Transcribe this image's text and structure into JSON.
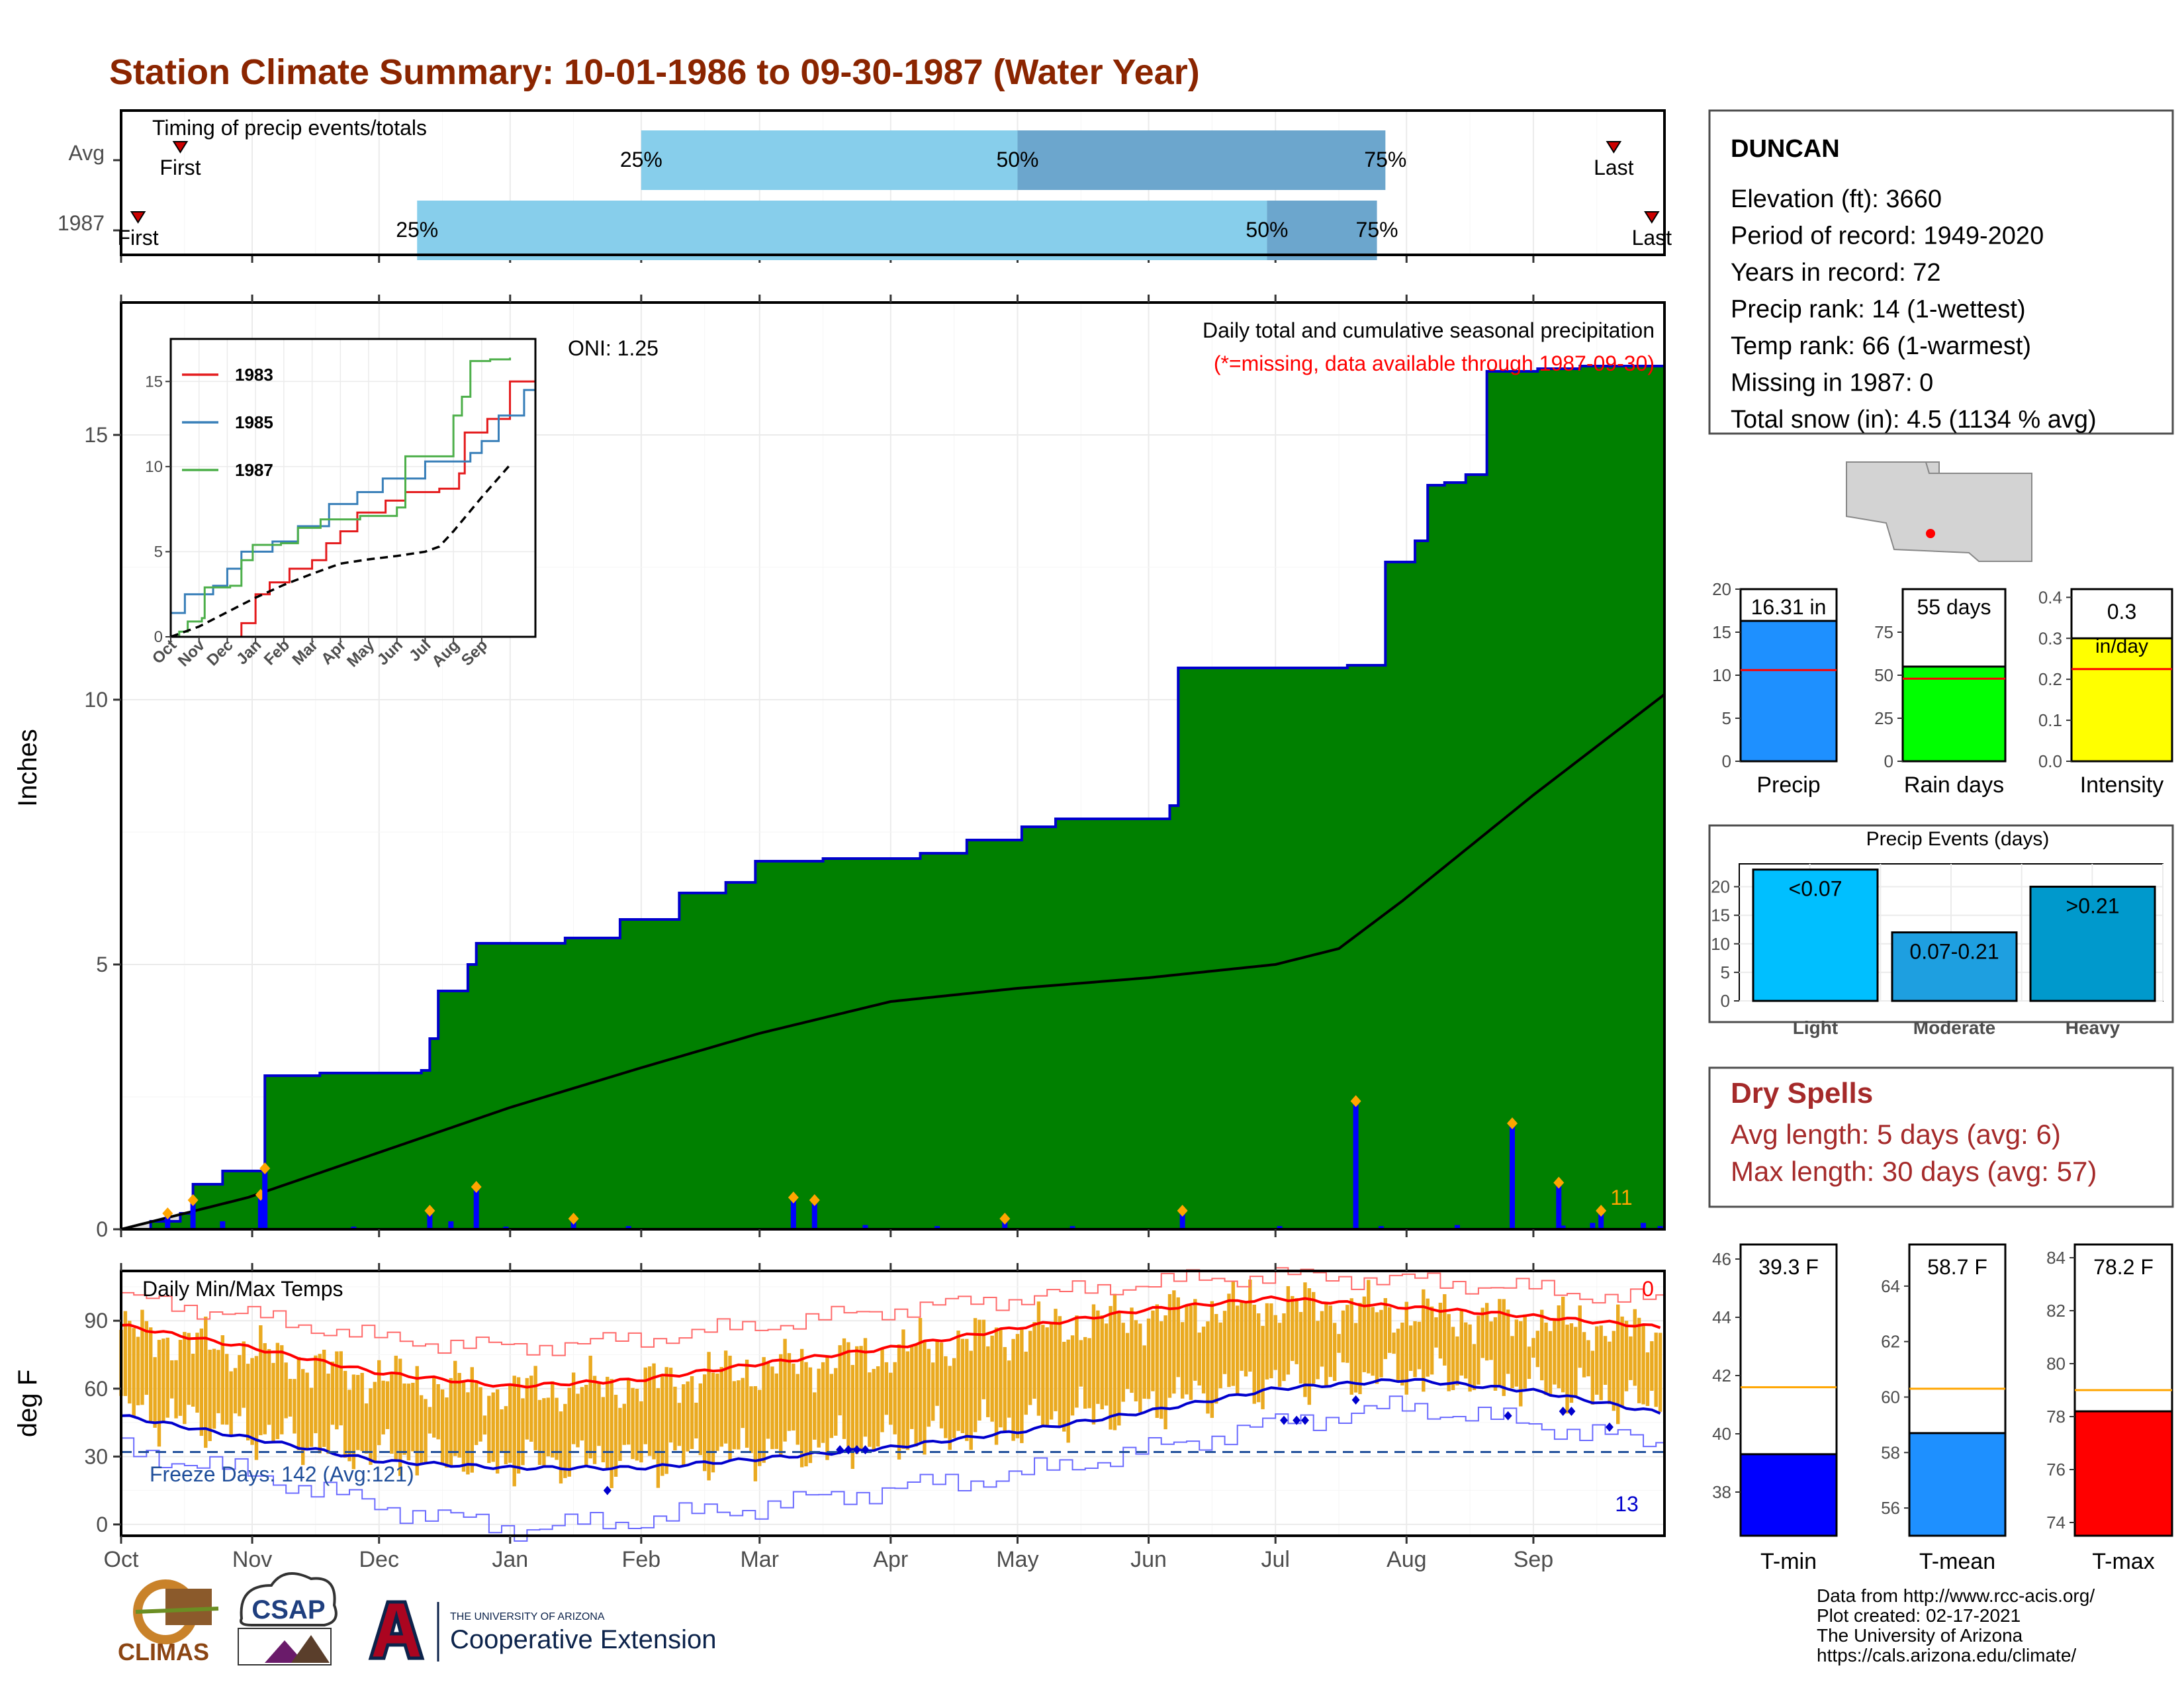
{
  "header": {
    "title": "Station Climate Summary: 10-01-1986 to 09-30-1987 (Water Year)"
  },
  "colors": {
    "title": "#8B2500",
    "cum_fill": "#008000",
    "cum_line": "#0000CD",
    "avg_fill": "#E0E0E0",
    "timing_light": "#87CEEB",
    "timing_dark": "#6CA6CD",
    "temp_bar": "#EAAA20",
    "avg_max": "#FF0000",
    "avg_min": "#0000FF",
    "tmin": "#0000FF",
    "tmean": "#1E90FF",
    "tmax": "#FF0000"
  },
  "timing": {
    "title": "Timing of precip events/totals",
    "rows": [
      {
        "label": "Avg",
        "first": "Oct 15",
        "q25": "Feb 1",
        "q50": "May 1",
        "q75": "Jul 27",
        "last": "Sep 20",
        "first_label": "First",
        "last_label": "Last"
      },
      {
        "label": "1987",
        "first": "Oct 5",
        "q25": "Dec 10",
        "q50": "Jun 29",
        "q75": "Jul 25",
        "last": "Sep 29",
        "first_label": "First",
        "last_label": "Last"
      }
    ],
    "pct_labels": [
      "25%",
      "50%",
      "75%"
    ]
  },
  "precip": {
    "ylabel": "Inches",
    "yticks": [
      "0",
      "5",
      "10",
      "15"
    ],
    "caption": "Daily total and cumulative seasonal precipitation",
    "missing_note": "(*=missing, data available through 1987-09-30)",
    "oni": "ONI: 1.25",
    "count": "11"
  },
  "inset": {
    "xlabels": [
      "Oct",
      "Nov",
      "Dec",
      "Jan",
      "Feb",
      "Mar",
      "Apr",
      "May",
      "Jun",
      "Jul",
      "Aug",
      "Sep"
    ],
    "yticks": [
      "0",
      "5",
      "10",
      "15"
    ],
    "legend": [
      {
        "name": "1983",
        "color": "#E41A1C"
      },
      {
        "name": "1985",
        "color": "#377EB8"
      },
      {
        "name": "1987",
        "color": "#4DAF4A"
      }
    ]
  },
  "temps": {
    "title": "Daily Min/Max Temps",
    "ylabel": "deg F",
    "yticks": [
      "0",
      "30",
      "60",
      "90"
    ],
    "freeze_label": "Freeze Days: 142 (Avg:121)",
    "hot_count": "0",
    "cold_count": "13"
  },
  "xaxis": {
    "months": [
      "Oct",
      "Nov",
      "Dec",
      "Jan",
      "Feb",
      "Mar",
      "Apr",
      "May",
      "Jun",
      "Jul",
      "Aug",
      "Sep"
    ]
  },
  "station": {
    "name": "DUNCAN",
    "lines": [
      "Elevation (ft): 3660",
      "Period of record: 1949-2020",
      "Years in record: 72",
      "Precip rank: 14 (1-wettest)",
      "Temp rank: 66 (1-warmest)",
      "Missing in 1987: 0",
      "Total snow (in): 4.5 (1134 % avg)"
    ]
  },
  "minicharts": [
    {
      "key": "precip",
      "value": 16.31,
      "avg": 10.6,
      "label": "16.31 in",
      "xlabel": "Precip",
      "ymax": 20,
      "yticks": [
        "0",
        "5",
        "10",
        "15",
        "20"
      ],
      "color": "#1E90FF"
    },
    {
      "key": "raindays",
      "value": 55,
      "avg": 48,
      "label": "55 days",
      "xlabel": "Rain days",
      "ymax": 100,
      "yticks": [
        "0",
        "25",
        "50",
        "75"
      ],
      "color": "#00FF00"
    },
    {
      "key": "intensity",
      "value": 0.3,
      "avg": 0.225,
      "label": "0.3\nin/day",
      "label_top": "0.3",
      "label_bottom": "in/day",
      "xlabel": "Intensity",
      "ymax": 0.42,
      "yticks": [
        "0.0",
        "0.1",
        "0.2",
        "0.3",
        "0.4"
      ],
      "color": "#FFFF00"
    }
  ],
  "events": {
    "title": "Precip Events (days)",
    "categories": [
      "Light",
      "Moderate",
      "Heavy"
    ],
    "labels": [
      "<0.07",
      "0.07-0.21",
      ">0.21"
    ],
    "values": [
      23,
      12,
      20
    ],
    "yticks": [
      "0",
      "5",
      "10",
      "15",
      "20"
    ],
    "colors": [
      "#00BFFF",
      "#1E9FE0",
      "#0099CC"
    ]
  },
  "dry_spells": {
    "title": "Dry Spells",
    "avg_line": "Avg length: 5 days (avg: 6)",
    "max_line": "Max length: 30 days (avg: 57)"
  },
  "temp_bars": [
    {
      "key": "tmin",
      "label": "39.3 F",
      "value": 39.3,
      "avg": 41.6,
      "xlabel": "T-min",
      "ymin": 36.5,
      "ymax": 46.5,
      "yticks": [
        "38",
        "40",
        "42",
        "44",
        "46"
      ],
      "color": "#0000FF"
    },
    {
      "key": "tmean",
      "label": "58.7 F",
      "value": 58.7,
      "avg": 60.3,
      "xlabel": "T-mean",
      "ymin": 55,
      "ymax": 65.5,
      "yticks": [
        "56",
        "58",
        "60",
        "62",
        "64"
      ],
      "color": "#1E90FF"
    },
    {
      "key": "tmax",
      "label": "78.2 F",
      "value": 78.2,
      "avg": 79.0,
      "xlabel": "T-max",
      "ymin": 73.5,
      "ymax": 84.5,
      "yticks": [
        "74",
        "76",
        "78",
        "80",
        "82",
        "84"
      ],
      "color": "#FF0000"
    }
  ],
  "footer": {
    "lines": [
      "Data from http://www.rcc-acis.org/",
      "Plot created: 02-17-2021",
      "The University of Arizona",
      "https://cals.arizona.edu/climate/"
    ],
    "climas": "CLIMAS",
    "csap": "CSAP",
    "ua_small": "THE UNIVERSITY OF ARIZONA",
    "ua_big": "Cooperative Extension"
  },
  "chart_data": [
    {
      "type": "area",
      "title": "Daily total and cumulative seasonal precipitation",
      "ylabel": "Inches",
      "x_unit": "day of water year (0 = Oct 1)",
      "ylim": [
        0,
        17.5
      ],
      "cumulative_1987": [
        [
          0,
          0
        ],
        [
          7,
          0.15
        ],
        [
          14,
          0.3
        ],
        [
          17,
          0.85
        ],
        [
          24,
          1.1
        ],
        [
          31,
          1.1
        ],
        [
          34,
          2.9
        ],
        [
          47,
          2.95
        ],
        [
          62,
          2.95
        ],
        [
          71,
          3.0
        ],
        [
          73,
          3.6
        ],
        [
          75,
          4.5
        ],
        [
          82,
          5.0
        ],
        [
          84,
          5.4
        ],
        [
          95,
          5.4
        ],
        [
          105,
          5.5
        ],
        [
          118,
          5.85
        ],
        [
          132,
          6.35
        ],
        [
          143,
          6.55
        ],
        [
          150,
          6.95
        ],
        [
          166,
          7.0
        ],
        [
          189,
          7.1
        ],
        [
          200,
          7.35
        ],
        [
          213,
          7.6
        ],
        [
          221,
          7.75
        ],
        [
          240,
          7.75
        ],
        [
          248,
          8.0
        ],
        [
          250,
          10.6
        ],
        [
          270,
          10.6
        ],
        [
          290,
          10.65
        ],
        [
          299,
          12.6
        ],
        [
          306,
          13.0
        ],
        [
          309,
          14.05
        ],
        [
          313,
          14.1
        ],
        [
          318,
          14.25
        ],
        [
          323,
          16.2
        ],
        [
          335,
          16.25
        ],
        [
          345,
          16.3
        ],
        [
          365,
          16.4
        ]
      ],
      "average_cumulative": [
        [
          0,
          0
        ],
        [
          30,
          0.6
        ],
        [
          61,
          1.45
        ],
        [
          92,
          2.3
        ],
        [
          123,
          3.05
        ],
        [
          151,
          3.7
        ],
        [
          182,
          4.3
        ],
        [
          212,
          4.55
        ],
        [
          243,
          4.75
        ],
        [
          273,
          5.0
        ],
        [
          288,
          5.3
        ],
        [
          303,
          6.2
        ],
        [
          334,
          8.2
        ],
        [
          365,
          10.1
        ]
      ],
      "daily_events": [
        [
          11,
          0.3
        ],
        [
          17,
          0.55
        ],
        [
          24,
          0.15
        ],
        [
          33,
          0.65
        ],
        [
          34,
          1.15
        ],
        [
          55,
          0.05
        ],
        [
          73,
          0.35
        ],
        [
          78,
          0.15
        ],
        [
          84,
          0.8
        ],
        [
          91,
          0.05
        ],
        [
          107,
          0.2
        ],
        [
          120,
          0.06
        ],
        [
          159,
          0.6
        ],
        [
          164,
          0.55
        ],
        [
          176,
          0.08
        ],
        [
          193,
          0.06
        ],
        [
          209,
          0.2
        ],
        [
          225,
          0.06
        ],
        [
          251,
          0.35
        ],
        [
          274,
          0.06
        ],
        [
          292,
          2.42
        ],
        [
          298,
          0.06
        ],
        [
          316,
          0.08
        ],
        [
          329,
          2.0
        ],
        [
          340,
          0.88
        ],
        [
          341,
          0.07
        ],
        [
          348,
          0.12
        ],
        [
          350,
          0.35
        ],
        [
          360,
          0.12
        ],
        [
          364,
          0.06
        ]
      ],
      "oni": 1.25
    },
    {
      "type": "line",
      "title": "",
      "x_categories": [
        "Oct",
        "Nov",
        "Dec",
        "Jan",
        "Feb",
        "Mar",
        "Apr",
        "May",
        "Jun",
        "Jul",
        "Aug",
        "Sep"
      ],
      "ylim": [
        0,
        17.5
      ],
      "series": [
        {
          "name": "1983",
          "points": [
            [
              0,
              0
            ],
            [
              2.5,
              0.8
            ],
            [
              3.0,
              2.5
            ],
            [
              3.5,
              3.2
            ],
            [
              4.2,
              4.0
            ],
            [
              5.0,
              4.5
            ],
            [
              5.5,
              5.5
            ],
            [
              6.0,
              6.2
            ],
            [
              6.6,
              7.3
            ],
            [
              7.6,
              8.0
            ],
            [
              8.3,
              8.5
            ],
            [
              9.5,
              8.7
            ],
            [
              10.2,
              9.6
            ],
            [
              10.4,
              12.0
            ],
            [
              11.2,
              12.8
            ],
            [
              12.0,
              15.0
            ],
            [
              12.9,
              16.3
            ]
          ]
        },
        {
          "name": "1985",
          "points": [
            [
              0,
              1.4
            ],
            [
              0.5,
              2.5
            ],
            [
              1.5,
              3.0
            ],
            [
              2.0,
              4.0
            ],
            [
              2.5,
              5.0
            ],
            [
              3.6,
              5.6
            ],
            [
              4.5,
              6.5
            ],
            [
              5.6,
              7.8
            ],
            [
              6.6,
              8.5
            ],
            [
              7.5,
              9.3
            ],
            [
              9.0,
              10.3
            ],
            [
              10.6,
              10.8
            ],
            [
              11.0,
              11.5
            ],
            [
              11.6,
              13.0
            ],
            [
              12.5,
              14.5
            ],
            [
              12.9,
              17.4
            ]
          ]
        },
        {
          "name": "1987",
          "points": [
            [
              0,
              0
            ],
            [
              0.3,
              0.3
            ],
            [
              0.6,
              0.9
            ],
            [
              1.1,
              1.1
            ],
            [
              1.2,
              2.9
            ],
            [
              2.1,
              3.0
            ],
            [
              2.5,
              4.5
            ],
            [
              2.9,
              5.4
            ],
            [
              3.9,
              5.5
            ],
            [
              4.5,
              6.4
            ],
            [
              5.3,
              6.9
            ],
            [
              6.7,
              7.1
            ],
            [
              8.0,
              7.6
            ],
            [
              8.3,
              10.6
            ],
            [
              9.7,
              10.6
            ],
            [
              10.0,
              13.0
            ],
            [
              10.3,
              14.1
            ],
            [
              10.6,
              16.2
            ],
            [
              11.3,
              16.3
            ],
            [
              12.0,
              16.4
            ]
          ]
        },
        {
          "name": "Average",
          "points": [
            [
              0,
              0
            ],
            [
              1.0,
              0.6
            ],
            [
              2.0,
              1.45
            ],
            [
              3.0,
              2.3
            ],
            [
              4.0,
              3.05
            ],
            [
              5.0,
              3.7
            ],
            [
              6.0,
              4.3
            ],
            [
              7.0,
              4.55
            ],
            [
              8.0,
              4.75
            ],
            [
              9.0,
              5.0
            ],
            [
              9.5,
              5.3
            ],
            [
              10.0,
              6.2
            ],
            [
              11.0,
              8.2
            ],
            [
              12.0,
              10.1
            ]
          ]
        }
      ]
    },
    {
      "type": "line",
      "title": "Daily Min/Max Temps",
      "ylabel": "deg F",
      "ylim": [
        -5,
        112
      ],
      "x_unit": "day of water year (0 = Oct 1)",
      "average_max": [
        [
          0,
          88
        ],
        [
          31,
          78
        ],
        [
          61,
          67
        ],
        [
          92,
          61
        ],
        [
          123,
          64
        ],
        [
          151,
          71
        ],
        [
          182,
          78
        ],
        [
          212,
          87
        ],
        [
          243,
          95
        ],
        [
          273,
          100
        ],
        [
          304,
          96
        ],
        [
          334,
          92
        ],
        [
          365,
          87
        ]
      ],
      "average_min": [
        [
          0,
          48
        ],
        [
          31,
          38
        ],
        [
          61,
          28
        ],
        [
          92,
          25
        ],
        [
          123,
          25
        ],
        [
          151,
          29
        ],
        [
          182,
          34
        ],
        [
          212,
          41
        ],
        [
          243,
          50
        ],
        [
          273,
          60
        ],
        [
          304,
          64
        ],
        [
          334,
          59
        ],
        [
          365,
          49
        ]
      ],
      "record_max": [
        [
          0,
          100
        ],
        [
          31,
          92
        ],
        [
          61,
          82
        ],
        [
          92,
          78
        ],
        [
          123,
          82
        ],
        [
          151,
          88
        ],
        [
          182,
          95
        ],
        [
          212,
          100
        ],
        [
          243,
          107
        ],
        [
          273,
          110
        ],
        [
          304,
          108
        ],
        [
          334,
          104
        ],
        [
          365,
          98
        ]
      ],
      "record_min": [
        [
          0,
          33
        ],
        [
          31,
          22
        ],
        [
          61,
          8
        ],
        [
          92,
          -2
        ],
        [
          123,
          2
        ],
        [
          151,
          8
        ],
        [
          182,
          16
        ],
        [
          212,
          22
        ],
        [
          243,
          33
        ],
        [
          273,
          45
        ],
        [
          304,
          52
        ],
        [
          334,
          44
        ],
        [
          365,
          35
        ]
      ],
      "freeze_threshold": 32,
      "freeze_days": 142,
      "freeze_days_avg": 121
    },
    {
      "type": "bar",
      "title": "Precip Events (days)",
      "categories": [
        "Light",
        "Moderate",
        "Heavy"
      ],
      "values": [
        23,
        12,
        20
      ]
    }
  ]
}
